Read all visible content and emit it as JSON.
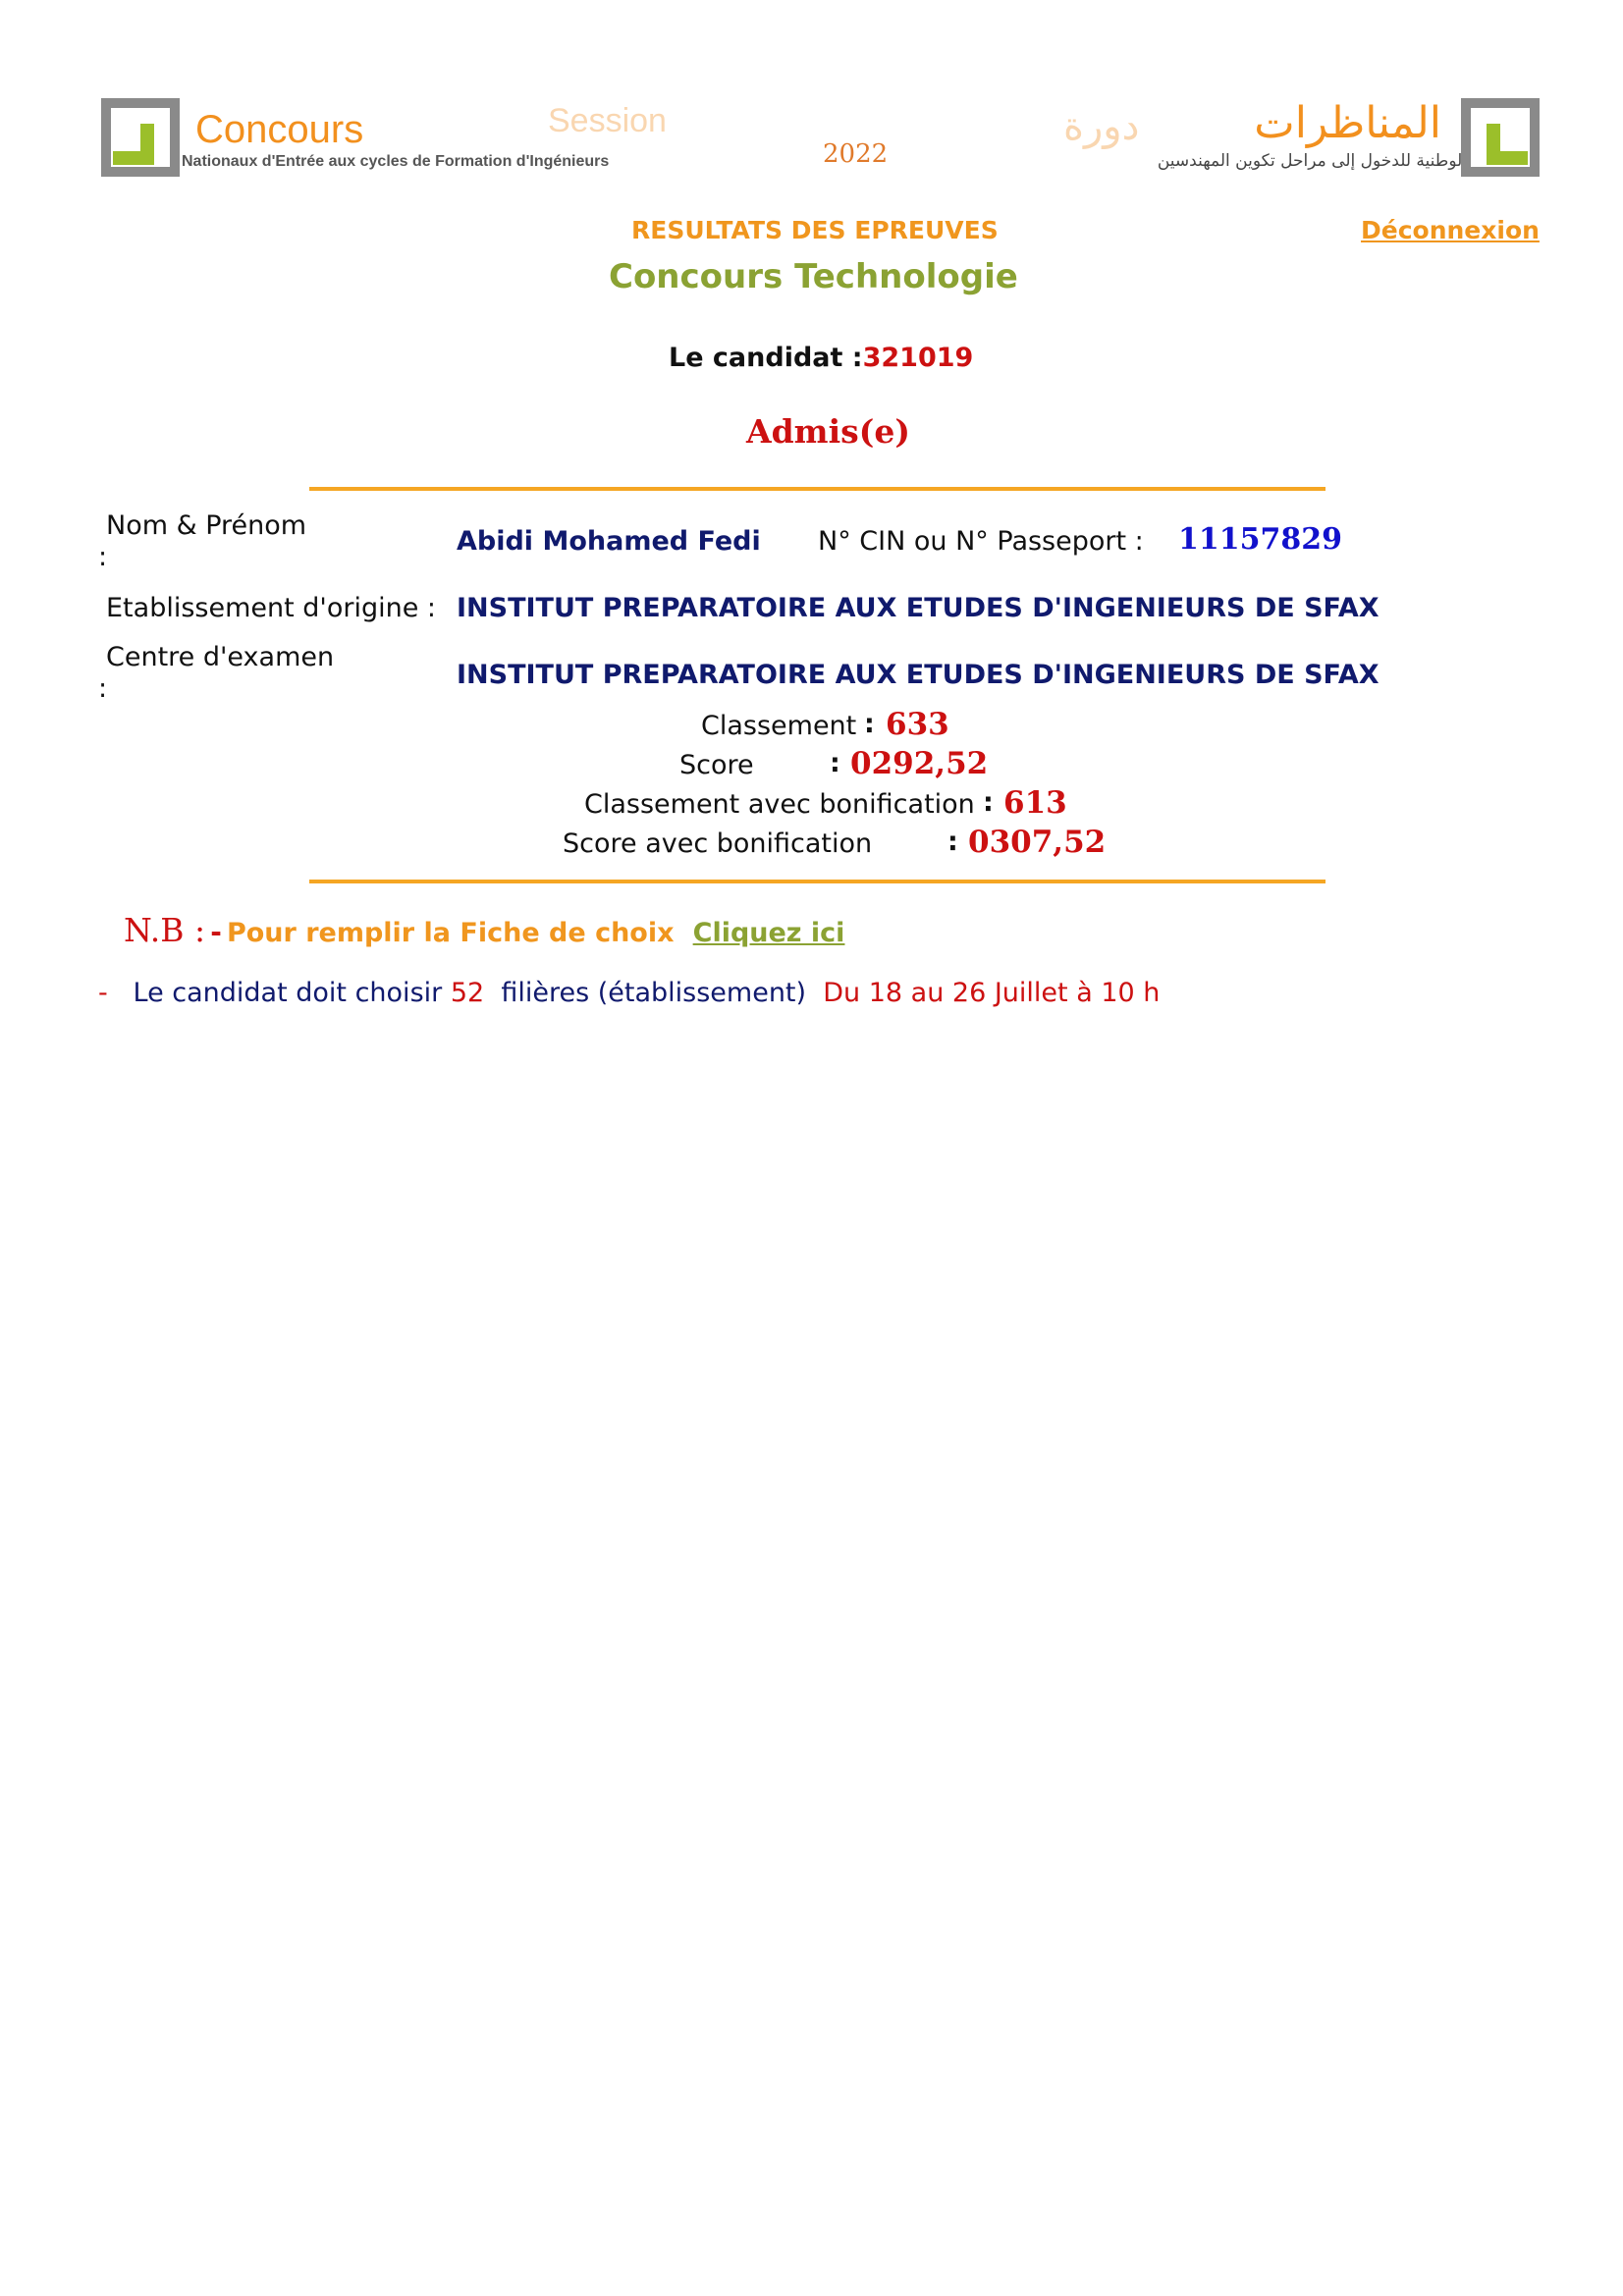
{
  "banner": {
    "left_title": "Concours",
    "left_subtitle": "Nationaux d'Entrée aux cycles de Formation d'Ingénieurs",
    "session_label": "Session",
    "year": "2022",
    "arabic_session": "دورة",
    "arabic_title": "المناظرات",
    "arabic_subtitle": "الوطنية للدخول إلى مراحل تكوين المهندسين"
  },
  "header": {
    "results_title": "RESULTATS DES EPREUVES",
    "logout_label": "Déconnexion",
    "contest_name": "Concours Technologie"
  },
  "candidate": {
    "label": "Le candidat :",
    "number": "321019",
    "status": "Admis(e)"
  },
  "info": {
    "name_label": "Nom & Prénom",
    "colon": ":",
    "name_value": "Abidi Mohamed Fedi",
    "cin_label": "N° CIN ou N° Passeport :",
    "cin_value": "11157829",
    "etab_label": "Etablissement d'origine :",
    "etab_value": "INSTITUT PREPARATOIRE AUX ETUDES D'INGENIEURS DE SFAX",
    "centre_label": "Centre d'examen",
    "centre_value": "INSTITUT PREPARATOIRE AUX ETUDES D'INGENIEURS DE SFAX"
  },
  "results": {
    "rank_label": "Classement",
    "rank_value": "633",
    "score_label": "Score",
    "score_value": "0292,52",
    "rank_bonus_label": "Classement avec bonification",
    "rank_bonus_value": "613",
    "score_bonus_label": "Score avec bonification",
    "score_bonus_value": "0307,52",
    "colon": ":"
  },
  "note": {
    "nb_label": "N.B :",
    "dash": "-",
    "text": "Pour remplir la Fiche de choix",
    "link_label": "Cliquez ici"
  },
  "choice": {
    "dash": "-",
    "text1": "Le candidat doit  choisir",
    "count": "52",
    "text2": "filières (établissement)",
    "dates": "Du 18 au 26 Juillet à 10 h"
  }
}
